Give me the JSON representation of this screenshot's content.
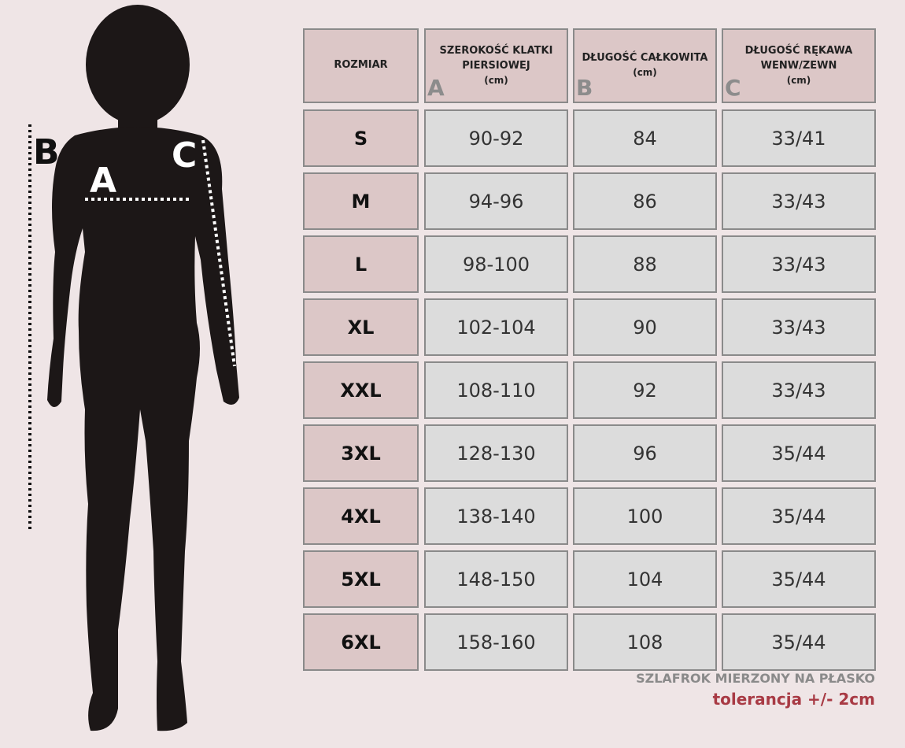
{
  "figure": {
    "labels": [
      "B",
      "C",
      "A"
    ]
  },
  "table": {
    "header": [
      {
        "title": "ROZMIAR"
      },
      {
        "title": "SZEROKOŚĆ KLATKI PIERSIOWEJ",
        "unit": "(cm)",
        "letter": "A"
      },
      {
        "title": "DŁUGOŚĆ CAŁKOWITA",
        "unit": "(cm)",
        "letter": "B"
      },
      {
        "title": "DŁUGOŚĆ RĘKAWA WENW/ZEWN",
        "unit": "(cm)",
        "letter": "C"
      }
    ],
    "rows": [
      [
        "S",
        "90-92",
        "84",
        "33/41"
      ],
      [
        "M",
        "94-96",
        "86",
        "33/43"
      ],
      [
        "L",
        "98-100",
        "88",
        "33/43"
      ],
      [
        "XL",
        "102-104",
        "90",
        "33/43"
      ],
      [
        "XXL",
        "108-110",
        "92",
        "33/43"
      ],
      [
        "3XL",
        "128-130",
        "96",
        "35/44"
      ],
      [
        "4XL",
        "138-140",
        "100",
        "35/44"
      ],
      [
        "5XL",
        "148-150",
        "104",
        "35/44"
      ],
      [
        "6XL",
        "158-160",
        "108",
        "35/44"
      ]
    ]
  },
  "footer": {
    "note": "SZLAFROK MIERZONY NA PŁASKO",
    "tolerance": "tolerancja +/- 2cm"
  }
}
